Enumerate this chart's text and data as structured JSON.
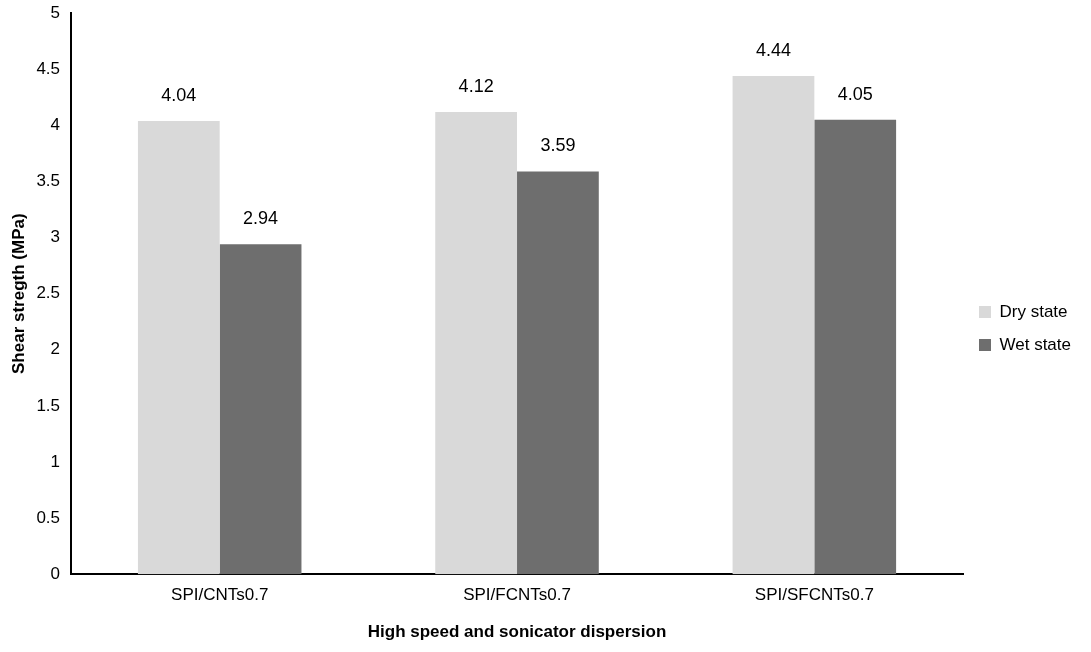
{
  "chart_data": {
    "type": "bar",
    "xlabel": "High speed and sonicator dispersion",
    "ylabel": "Shear stregth (MPa)",
    "categories": [
      "SPI/CNTs0.7",
      "SPI/FCNTs0.7",
      "SPI/SFCNTs0.7"
    ],
    "series": [
      {
        "name": "Dry state",
        "color": "#d9d9d9",
        "values": [
          4.04,
          4.12,
          4.44
        ]
      },
      {
        "name": "Wet state",
        "color": "#6e6e6e",
        "values": [
          2.94,
          3.59,
          4.05
        ]
      }
    ],
    "ylim": [
      0,
      5
    ],
    "yticks": [
      0,
      0.5,
      1,
      1.5,
      2,
      2.5,
      3,
      3.5,
      4,
      4.5,
      5
    ],
    "grid": false,
    "legend": "right",
    "data_labels": true
  }
}
